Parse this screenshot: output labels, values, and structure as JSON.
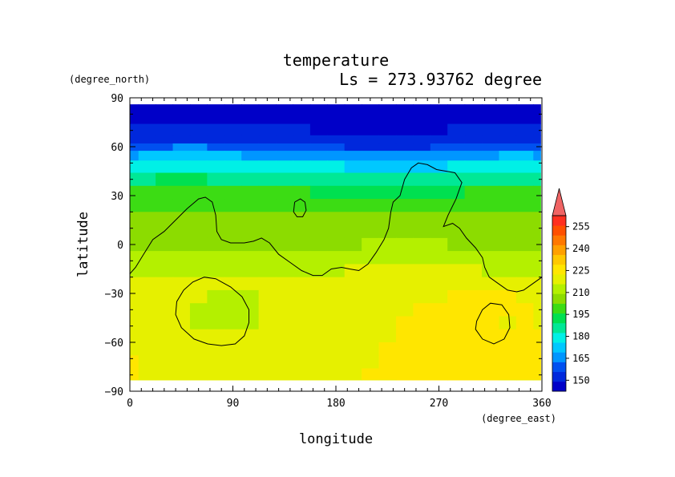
{
  "chart_data": {
    "type": "heatmap",
    "title": "temperature",
    "subtitle": "Ls = 273.93762 degree",
    "xlabel": "longitude",
    "ylabel": "latitude",
    "x_units": "(degree_east)",
    "y_units": "(degree_north)",
    "xlim": [
      0,
      360
    ],
    "ylim": [
      -90,
      90
    ],
    "x_ticks": [
      0,
      90,
      180,
      270,
      360
    ],
    "x_tick_labels": [
      "0",
      "90",
      "180",
      "270",
      "360"
    ],
    "y_ticks": [
      90,
      60,
      30,
      0,
      -30,
      -60,
      -90
    ],
    "y_tick_labels": [
      "90",
      "60",
      "30",
      "0",
      "−30",
      "−60",
      "−90"
    ],
    "grid": false,
    "colorbar": {
      "position": "right",
      "min": 142.5,
      "max": 262.5,
      "step": 7.5,
      "tick_values": [
        150,
        165,
        180,
        195,
        210,
        225,
        240,
        255
      ],
      "tick_labels": [
        "150",
        "165",
        "180",
        "195",
        "210",
        "225",
        "240",
        "255"
      ],
      "colors": [
        "#0000c8",
        "#0028dc",
        "#0050f0",
        "#0096ff",
        "#00c8ff",
        "#00f0e6",
        "#00e896",
        "#00e050",
        "#3cdc14",
        "#8cdc00",
        "#b4f000",
        "#e6f000",
        "#ffe600",
        "#ffc800",
        "#ffa000",
        "#ff7800",
        "#ff5000",
        "#ff3020"
      ],
      "over_color": "#f06464"
    },
    "contour_level_note": "",
    "contour_lines": [
      [
        [
          0,
          -18
        ],
        [
          5,
          -14
        ],
        [
          12,
          -6
        ],
        [
          20,
          3
        ],
        [
          30,
          8
        ],
        [
          40,
          15
        ],
        [
          50,
          22
        ],
        [
          60,
          28
        ],
        [
          66,
          29
        ],
        [
          72,
          26
        ],
        [
          75,
          18
        ],
        [
          76,
          8
        ],
        [
          80,
          3
        ],
        [
          88,
          1
        ],
        [
          100,
          1
        ],
        [
          108,
          2
        ],
        [
          115,
          4
        ],
        [
          122,
          1
        ],
        [
          130,
          -6
        ],
        [
          140,
          -11
        ],
        [
          150,
          -16
        ],
        [
          160,
          -19
        ],
        [
          168,
          -19
        ],
        [
          176,
          -15
        ],
        [
          185,
          -14
        ],
        [
          192,
          -15
        ],
        [
          200,
          -16
        ],
        [
          208,
          -12
        ],
        [
          215,
          -5
        ],
        [
          222,
          3
        ],
        [
          226,
          10
        ],
        [
          228,
          20
        ],
        [
          230,
          26
        ],
        [
          236,
          30
        ],
        [
          240,
          40
        ],
        [
          246,
          47
        ],
        [
          252,
          50
        ],
        [
          260,
          49
        ],
        [
          268,
          46
        ],
        [
          276,
          45
        ],
        [
          284,
          44
        ],
        [
          290,
          38
        ],
        [
          285,
          28
        ],
        [
          278,
          18
        ],
        [
          274,
          11
        ],
        [
          282,
          13
        ],
        [
          288,
          10
        ],
        [
          294,
          4
        ],
        [
          302,
          -2
        ],
        [
          308,
          -8
        ],
        [
          310,
          -14
        ],
        [
          314,
          -20
        ],
        [
          322,
          -24
        ],
        [
          330,
          -28
        ],
        [
          338,
          -29
        ],
        [
          344,
          -28
        ],
        [
          352,
          -24
        ],
        [
          360,
          -20
        ]
      ],
      [
        [
          144,
          26
        ],
        [
          149,
          28
        ],
        [
          153,
          26
        ],
        [
          154,
          21
        ],
        [
          151,
          17
        ],
        [
          146,
          17
        ],
        [
          143,
          20
        ],
        [
          144,
          26
        ]
      ],
      [
        [
          47,
          -28
        ],
        [
          55,
          -23
        ],
        [
          65,
          -20
        ],
        [
          75,
          -21
        ],
        [
          88,
          -26
        ],
        [
          98,
          -32
        ],
        [
          104,
          -40
        ],
        [
          104,
          -48
        ],
        [
          100,
          -56
        ],
        [
          92,
          -61
        ],
        [
          80,
          -62
        ],
        [
          68,
          -61
        ],
        [
          56,
          -58
        ],
        [
          45,
          -51
        ],
        [
          40,
          -43
        ],
        [
          41,
          -35
        ],
        [
          47,
          -28
        ]
      ],
      [
        [
          303,
          -47
        ],
        [
          308,
          -40
        ],
        [
          315,
          -36
        ],
        [
          325,
          -37
        ],
        [
          331,
          -43
        ],
        [
          332,
          -51
        ],
        [
          327,
          -58
        ],
        [
          318,
          -61
        ],
        [
          308,
          -58
        ],
        [
          302,
          -52
        ],
        [
          303,
          -47
        ]
      ]
    ],
    "temperature_bands": [
      {
        "lat": 85,
        "temps": [
          147,
          147,
          147,
          147,
          147,
          147,
          147,
          147,
          147,
          147,
          147,
          147,
          147,
          147,
          147,
          147,
          147,
          147,
          147,
          147,
          147,
          147,
          147,
          147,
          147
        ]
      },
      {
        "lat": 78,
        "temps": [
          148,
          148,
          148,
          148,
          148,
          148,
          148,
          148,
          148,
          148,
          148,
          148,
          148,
          148,
          148,
          148,
          148,
          148,
          148,
          148,
          148,
          148,
          148,
          148,
          148
        ]
      },
      {
        "lat": 70,
        "temps": [
          150,
          150,
          150,
          150,
          150,
          150,
          150,
          150,
          150,
          150,
          150,
          149,
          149,
          149,
          149,
          149,
          149,
          149,
          149,
          150,
          150,
          150,
          150,
          150,
          150
        ]
      },
      {
        "lat": 64,
        "temps": [
          155,
          155,
          156,
          156,
          156,
          155,
          154,
          154,
          154,
          154,
          154,
          153,
          152,
          151,
          151,
          151,
          151,
          151,
          152,
          152,
          153,
          154,
          155,
          155,
          155
        ]
      },
      {
        "lat": 60,
        "temps": [
          162,
          163,
          164,
          165,
          165,
          164,
          163,
          162,
          162,
          162,
          162,
          161,
          159,
          157,
          156,
          155,
          156,
          157,
          158,
          159,
          161,
          162,
          163,
          163,
          162
        ]
      },
      {
        "lat": 55,
        "temps": [
          172,
          173,
          174,
          175,
          175,
          174,
          173,
          172,
          172,
          172,
          172,
          171,
          169,
          167,
          166,
          165,
          166,
          167,
          168,
          169,
          171,
          172,
          173,
          173,
          172
        ]
      },
      {
        "lat": 48,
        "temps": [
          182,
          183,
          184,
          185,
          185,
          184,
          183,
          183,
          183,
          183,
          183,
          182,
          180,
          178,
          177,
          176,
          177,
          178,
          179,
          180,
          181,
          182,
          183,
          183,
          182
        ]
      },
      {
        "lat": 40,
        "temps": [
          193,
          194,
          195,
          195,
          195,
          194,
          193,
          193,
          193,
          193,
          193,
          192,
          190,
          189,
          188,
          188,
          188,
          189,
          190,
          191,
          192,
          193,
          193,
          193,
          193
        ]
      },
      {
        "lat": 32,
        "temps": [
          203,
          204,
          204,
          204,
          204,
          203,
          203,
          203,
          203,
          203,
          203,
          202,
          201,
          200,
          199,
          199,
          199,
          200,
          201,
          202,
          203,
          203,
          203,
          203,
          203
        ]
      },
      {
        "lat": 24,
        "temps": [
          208,
          209,
          209,
          209,
          209,
          209,
          208,
          208,
          208,
          208,
          208,
          207,
          207,
          206,
          206,
          206,
          206,
          206,
          207,
          207,
          208,
          208,
          208,
          208,
          208
        ]
      },
      {
        "lat": 16,
        "temps": [
          212,
          212,
          212,
          212,
          212,
          211,
          211,
          211,
          211,
          211,
          211,
          210,
          210,
          210,
          211,
          212,
          214,
          214,
          213,
          212,
          212,
          212,
          212,
          212,
          212
        ]
      },
      {
        "lat": 8,
        "temps": [
          214,
          214,
          214,
          214,
          213,
          213,
          213,
          212,
          212,
          212,
          212,
          212,
          212,
          213,
          214,
          215,
          216,
          216,
          215,
          214,
          214,
          214,
          214,
          214,
          214
        ]
      },
      {
        "lat": 0,
        "temps": [
          216,
          216,
          216,
          215,
          215,
          215,
          214,
          214,
          214,
          214,
          214,
          215,
          216,
          217,
          218,
          219,
          219,
          219,
          218,
          217,
          216,
          216,
          216,
          216,
          216
        ]
      },
      {
        "lat": -8,
        "temps": [
          219,
          219,
          219,
          219,
          218,
          218,
          218,
          218,
          218,
          218,
          219,
          219,
          219,
          220,
          221,
          222,
          223,
          224,
          224,
          223,
          222,
          221,
          220,
          219,
          219
        ]
      },
      {
        "lat": -16,
        "temps": [
          221,
          221,
          221,
          221,
          221,
          221,
          221,
          221,
          221,
          222,
          222,
          223,
          224,
          225,
          226,
          226,
          226,
          226,
          226,
          226,
          225,
          224,
          223,
          222,
          221
        ]
      },
      {
        "lat": -24,
        "temps": [
          226,
          227,
          227,
          227,
          227,
          227,
          226,
          225,
          225,
          225,
          225,
          225,
          225,
          225,
          225,
          225,
          226,
          226,
          227,
          227,
          228,
          228,
          228,
          227,
          226
        ]
      },
      {
        "lat": -32,
        "temps": [
          229,
          229,
          229,
          229,
          226,
          224,
          223,
          224,
          228,
          229,
          229,
          229,
          228,
          227,
          227,
          228,
          230,
          231,
          232,
          233,
          233,
          233,
          233,
          232,
          230
        ]
      },
      {
        "lat": -40,
        "temps": [
          230,
          230,
          230,
          228,
          224,
          223,
          222,
          222,
          227,
          230,
          230,
          230,
          229,
          228,
          227,
          229,
          232,
          234,
          235,
          235,
          235,
          235,
          233,
          233,
          231
        ]
      },
      {
        "lat": -48,
        "temps": [
          230,
          230,
          230,
          227,
          224,
          223,
          223,
          224,
          228,
          230,
          230,
          230,
          229,
          228,
          228,
          231,
          234,
          235,
          236,
          236,
          235,
          234,
          232,
          233,
          232
        ]
      },
      {
        "lat": -56,
        "temps": [
          231,
          231,
          231,
          230,
          227,
          225,
          225,
          227,
          229,
          231,
          231,
          230,
          230,
          229,
          229,
          232,
          235,
          236,
          236,
          236,
          236,
          235,
          234,
          234,
          233
        ]
      },
      {
        "lat": -64,
        "temps": [
          231,
          231,
          231,
          231,
          231,
          230,
          230,
          230,
          231,
          231,
          231,
          231,
          230,
          230,
          231,
          233,
          236,
          236,
          236,
          236,
          236,
          235,
          235,
          235,
          234
        ]
      },
      {
        "lat": -72,
        "temps": [
          233,
          232,
          232,
          232,
          232,
          231,
          231,
          231,
          231,
          231,
          231,
          231,
          231,
          231,
          232,
          233,
          235,
          236,
          236,
          236,
          236,
          236,
          235,
          235,
          234
        ]
      },
      {
        "lat": -80,
        "temps": [
          233,
          232,
          232,
          232,
          232,
          232,
          232,
          232,
          232,
          232,
          232,
          232,
          232,
          232,
          233,
          234,
          235,
          235,
          235,
          235,
          235,
          235,
          234,
          234,
          234
        ]
      },
      {
        "lat": -86,
        "temps": [
          231,
          231,
          231,
          231,
          231,
          231,
          231,
          231,
          231,
          231,
          231,
          231,
          231,
          231,
          232,
          232,
          233,
          233,
          233,
          233,
          233,
          233,
          232,
          232,
          232
        ]
      }
    ]
  }
}
